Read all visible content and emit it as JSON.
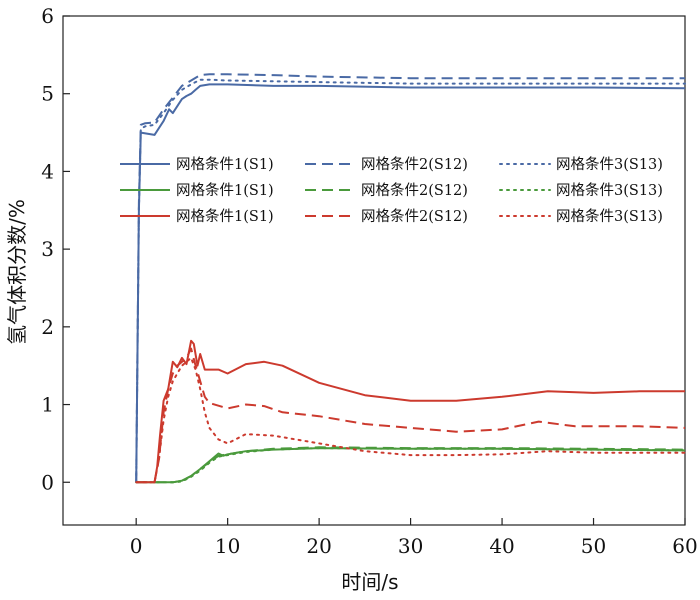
{
  "chart_data": {
    "type": "line",
    "title": "",
    "xlabel": "时间/s",
    "ylabel": "氢气体积分数/%",
    "xlim": [
      -8,
      60
    ],
    "ylim": [
      -0.55,
      6
    ],
    "xticks": [
      0,
      10,
      20,
      30,
      40,
      50,
      60
    ],
    "yticks": [
      0,
      1,
      2,
      3,
      4,
      5,
      6
    ],
    "grid": false,
    "legend_location": "center-right",
    "legend_rows": [
      [
        {
          "label": "网格条件1(S1)",
          "color": "#4a6aa5",
          "dash": "solid"
        },
        {
          "label": "网格条件2(S12)",
          "color": "#4a6aa5",
          "dash": "dashed"
        },
        {
          "label": "网格条件3(S13)",
          "color": "#4a6aa5",
          "dash": "dotted"
        }
      ],
      [
        {
          "label": "网格条件1(S1)",
          "color": "#4a9a3c",
          "dash": "solid"
        },
        {
          "label": "网格条件2(S12)",
          "color": "#4a9a3c",
          "dash": "dashed"
        },
        {
          "label": "网格条件3(S13)",
          "color": "#4a9a3c",
          "dash": "dotted"
        }
      ],
      [
        {
          "label": "网格条件1(S1)",
          "color": "#cc3a2e",
          "dash": "solid"
        },
        {
          "label": "网格条件2(S12)",
          "color": "#cc3a2e",
          "dash": "dashed"
        },
        {
          "label": "网格条件3(S13)",
          "color": "#cc3a2e",
          "dash": "dotted"
        }
      ]
    ],
    "series": [
      {
        "name": "蓝 网格条件1(S1)",
        "color": "#4a6aa5",
        "dash": "solid",
        "x": [
          0,
          0.3,
          0.5,
          2,
          3,
          3.6,
          4,
          5,
          5.5,
          6,
          6.5,
          7,
          8,
          10,
          15,
          20,
          30,
          40,
          50,
          60
        ],
        "y": [
          0,
          3.5,
          4.5,
          4.47,
          4.65,
          4.8,
          4.75,
          4.93,
          4.97,
          5.0,
          5.05,
          5.1,
          5.12,
          5.12,
          5.1,
          5.1,
          5.08,
          5.08,
          5.08,
          5.07
        ]
      },
      {
        "name": "蓝 网格条件2(S12)",
        "color": "#4a6aa5",
        "dash": "dashed",
        "x": [
          0,
          0.3,
          0.5,
          1,
          2,
          3,
          4,
          5,
          6,
          7,
          8,
          10,
          15,
          20,
          30,
          40,
          50,
          60
        ],
        "y": [
          0,
          3.6,
          4.6,
          4.62,
          4.63,
          4.8,
          4.95,
          5.1,
          5.17,
          5.24,
          5.25,
          5.25,
          5.24,
          5.22,
          5.2,
          5.2,
          5.2,
          5.2
        ]
      },
      {
        "name": "蓝 网格条件3(S13)",
        "color": "#4a6aa5",
        "dash": "dotted",
        "x": [
          0,
          0.3,
          0.5,
          1,
          2,
          3,
          4,
          5,
          6,
          7,
          8,
          10,
          15,
          20,
          30,
          40,
          50,
          60
        ],
        "y": [
          0,
          3.5,
          4.55,
          4.58,
          4.6,
          4.75,
          4.92,
          5.05,
          5.12,
          5.18,
          5.18,
          5.17,
          5.16,
          5.15,
          5.13,
          5.13,
          5.13,
          5.13
        ]
      },
      {
        "name": "绿 网格条件1(S1)",
        "color": "#4a9a3c",
        "dash": "solid",
        "x": [
          0,
          2,
          4,
          5,
          6,
          7,
          8,
          9,
          9.5,
          10,
          12,
          15,
          20,
          30,
          40,
          50,
          60
        ],
        "y": [
          0,
          0,
          0,
          0.02,
          0.08,
          0.17,
          0.27,
          0.37,
          0.34,
          0.36,
          0.4,
          0.42,
          0.44,
          0.43,
          0.43,
          0.42,
          0.41
        ]
      },
      {
        "name": "绿 网格条件2(S12)",
        "color": "#4a9a3c",
        "dash": "dashed",
        "x": [
          0,
          2,
          4,
          5,
          6,
          7,
          8,
          9,
          10,
          12,
          15,
          20,
          30,
          40,
          50,
          60
        ],
        "y": [
          0,
          0,
          0,
          0.02,
          0.08,
          0.17,
          0.26,
          0.34,
          0.36,
          0.4,
          0.43,
          0.45,
          0.44,
          0.44,
          0.43,
          0.42
        ]
      },
      {
        "name": "绿 网格条件3(S13)",
        "color": "#4a9a3c",
        "dash": "dotted",
        "x": [
          0,
          2,
          4,
          5,
          6,
          7,
          8,
          9,
          10,
          12,
          15,
          20,
          30,
          40,
          50,
          60
        ],
        "y": [
          0,
          0,
          0,
          0.01,
          0.07,
          0.15,
          0.25,
          0.33,
          0.35,
          0.39,
          0.42,
          0.44,
          0.43,
          0.43,
          0.42,
          0.41
        ]
      },
      {
        "name": "红 网格条件1(S1)",
        "color": "#cc3a2e",
        "dash": "solid",
        "x": [
          0,
          2,
          2.3,
          2.6,
          3,
          3.5,
          4,
          4.5,
          5,
          5.5,
          6,
          6.3,
          6.7,
          7,
          7.5,
          9,
          10,
          12,
          14,
          16,
          20,
          25,
          30,
          35,
          40,
          45,
          50,
          55,
          60
        ],
        "y": [
          0,
          0,
          0.2,
          0.6,
          1.05,
          1.2,
          1.55,
          1.48,
          1.6,
          1.52,
          1.82,
          1.78,
          1.5,
          1.65,
          1.45,
          1.45,
          1.4,
          1.52,
          1.55,
          1.5,
          1.28,
          1.12,
          1.05,
          1.05,
          1.1,
          1.17,
          1.15,
          1.17,
          1.17
        ]
      },
      {
        "name": "红 网格条件2(S12)",
        "color": "#cc3a2e",
        "dash": "dashed",
        "x": [
          0,
          2,
          2.5,
          3,
          3.5,
          4,
          4.5,
          5,
          5.5,
          6,
          6.5,
          7,
          7.5,
          8,
          10,
          12,
          14,
          16,
          20,
          25,
          30,
          35,
          40,
          44,
          48,
          55,
          60
        ],
        "y": [
          0,
          0,
          0.3,
          0.9,
          1.2,
          1.4,
          1.5,
          1.55,
          1.6,
          1.72,
          1.5,
          1.3,
          1.1,
          1.02,
          0.95,
          1.0,
          0.98,
          0.9,
          0.85,
          0.75,
          0.7,
          0.65,
          0.68,
          0.78,
          0.72,
          0.72,
          0.7
        ]
      },
      {
        "name": "红 网格条件3(S13)",
        "color": "#cc3a2e",
        "dash": "dotted",
        "x": [
          0,
          2,
          2.5,
          3,
          3.5,
          4,
          4.5,
          5,
          5.5,
          6,
          6.5,
          7,
          7.5,
          8,
          9,
          10,
          12,
          15,
          20,
          25,
          30,
          35,
          40,
          45,
          50,
          55,
          60
        ],
        "y": [
          0,
          0,
          0.3,
          0.8,
          1.1,
          1.3,
          1.4,
          1.5,
          1.55,
          1.6,
          1.45,
          1.2,
          0.9,
          0.7,
          0.55,
          0.5,
          0.62,
          0.6,
          0.5,
          0.4,
          0.35,
          0.35,
          0.36,
          0.4,
          0.38,
          0.38,
          0.38
        ]
      }
    ]
  }
}
